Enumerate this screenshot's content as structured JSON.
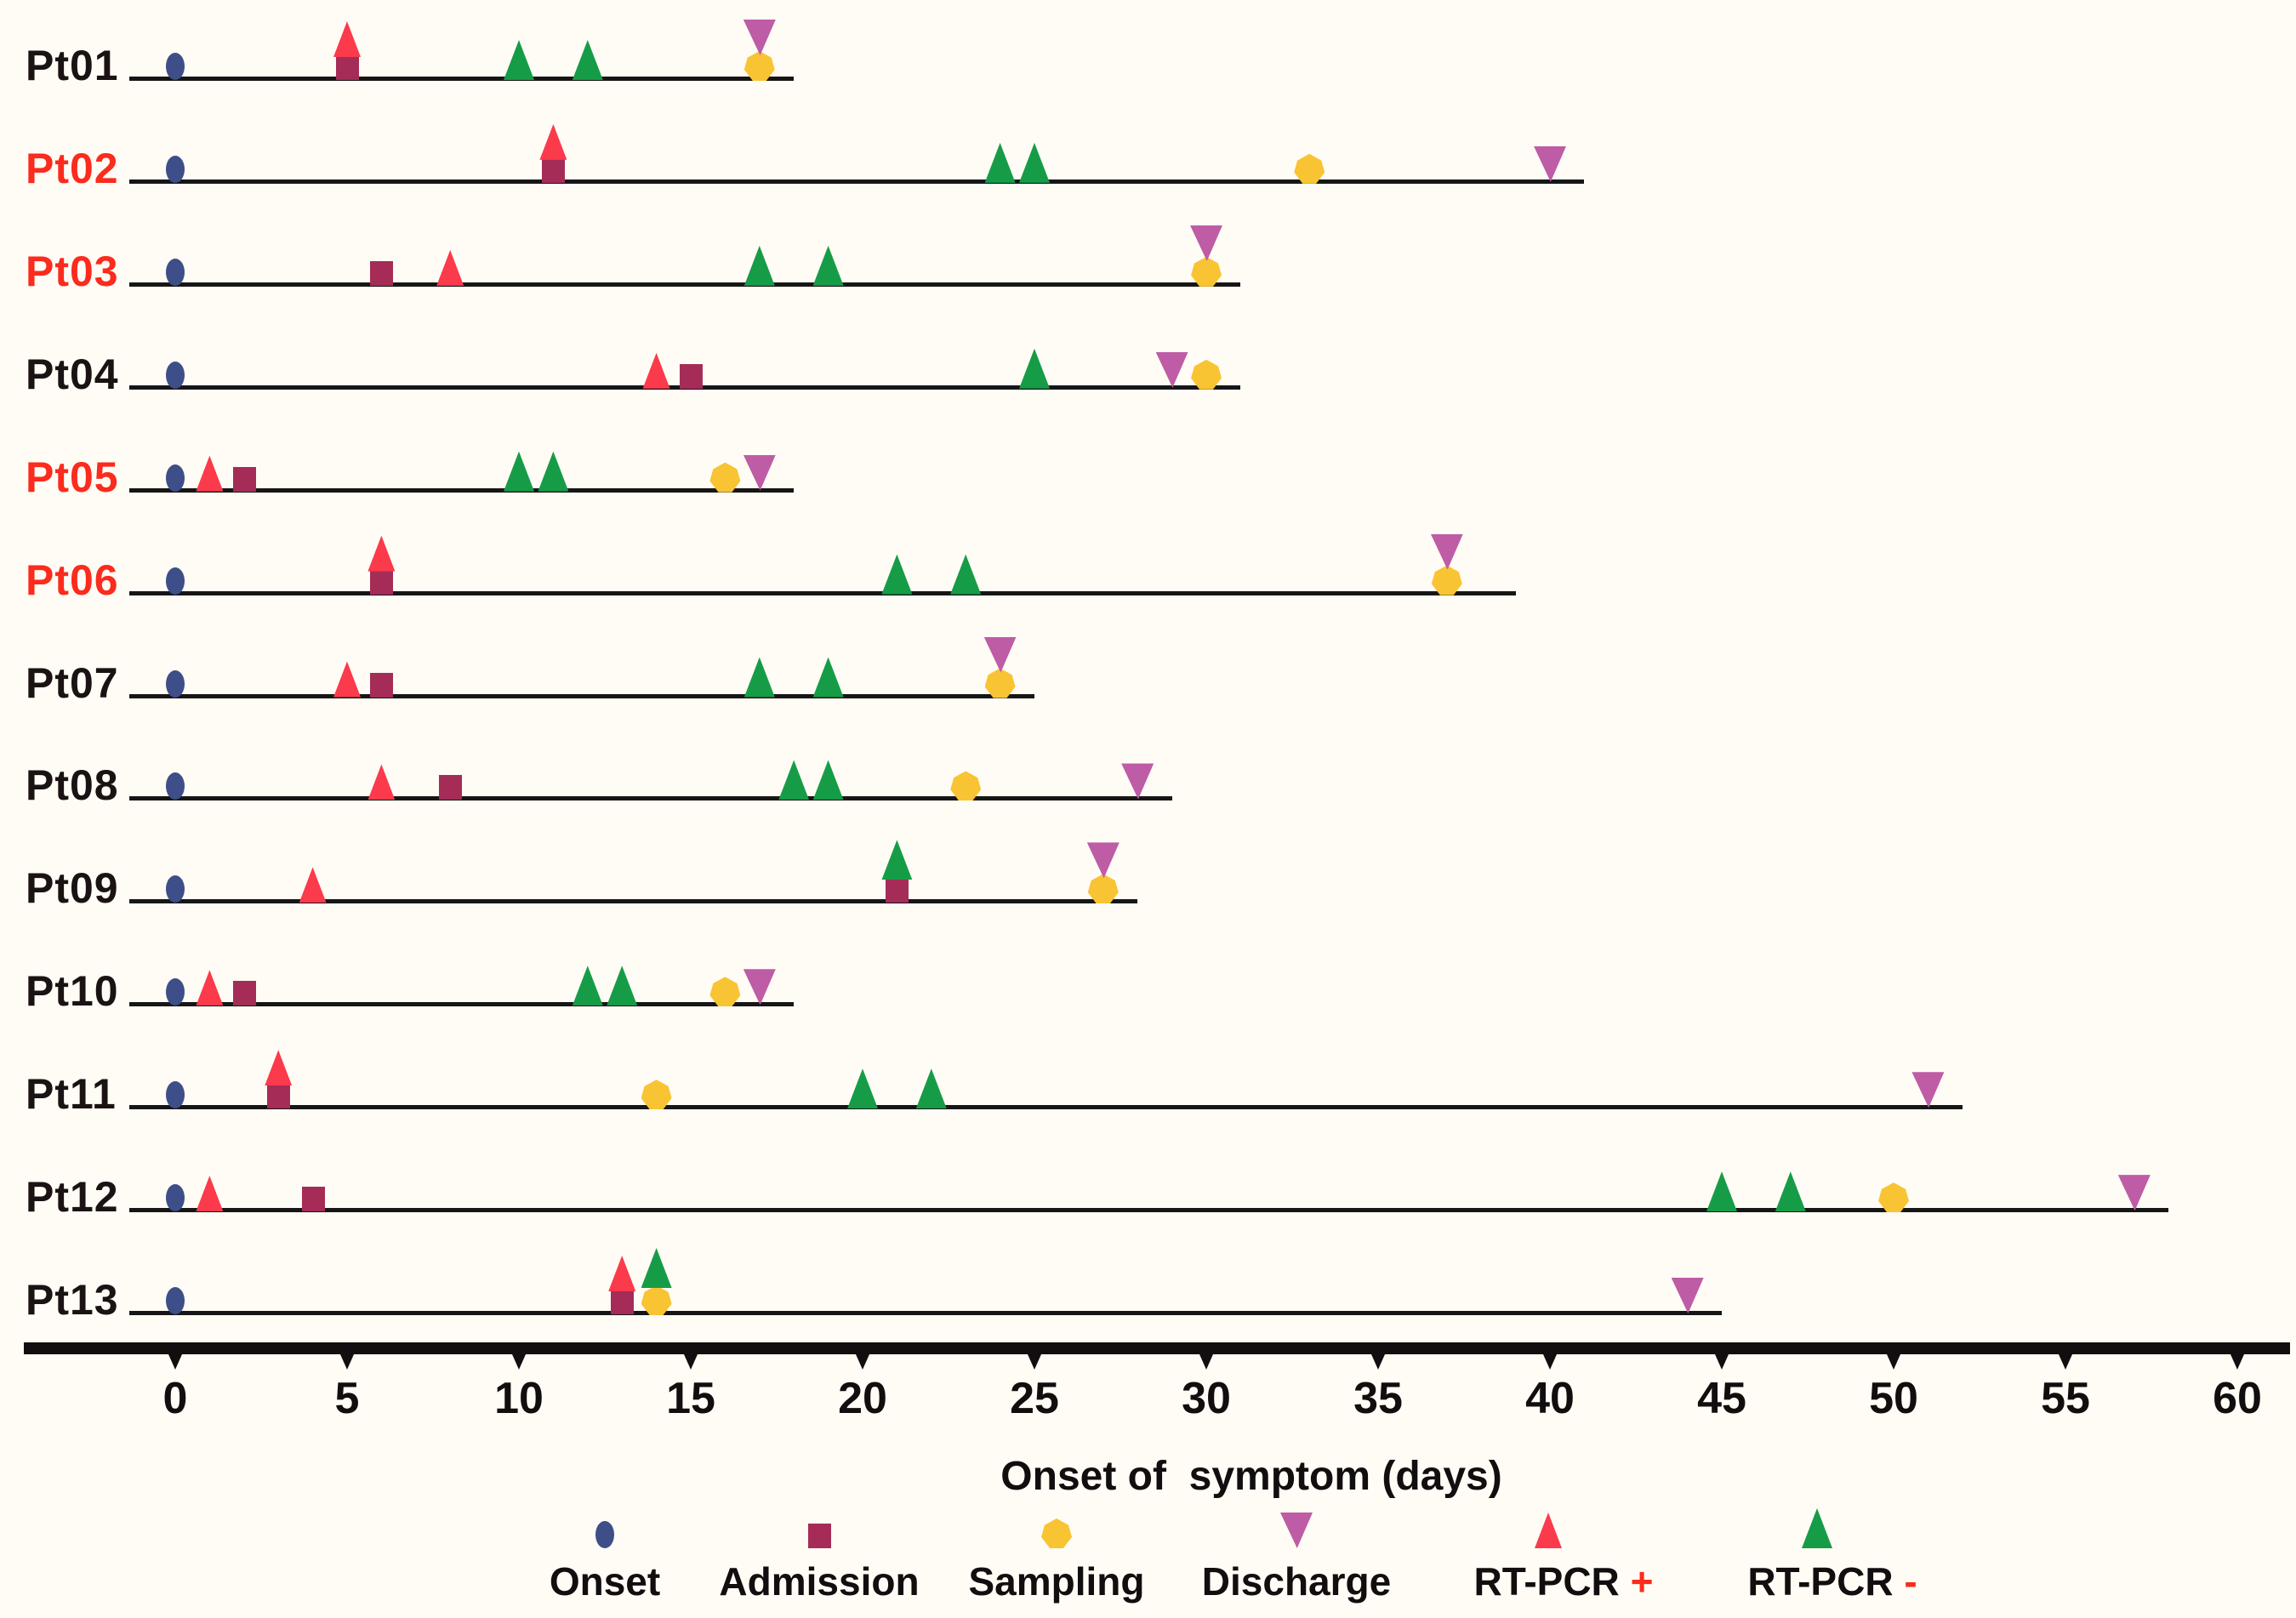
{
  "figure": {
    "background": "#FFFCF5",
    "axis_title": "Onset of  symptom (days)"
  },
  "colors": {
    "onset": "#3E4E88",
    "admission": "#A52C57",
    "sampling": "#F9C433",
    "discharge": "#BE5CA6",
    "rt_pcr_positive": "#FB3A4C",
    "rt_pcr_negative": "#169C47",
    "patient_label_red": "#FB2B1D",
    "text": "#1A1213",
    "line": "#161616"
  },
  "legend": [
    {
      "label": "Onset",
      "marker": "onset",
      "suffix": ""
    },
    {
      "label": "Admission",
      "marker": "admission",
      "suffix": ""
    },
    {
      "label": "Sampling",
      "marker": "sampling",
      "suffix": ""
    },
    {
      "label": "Discharge",
      "marker": "discharge",
      "suffix": ""
    },
    {
      "label": "RT-PCR",
      "marker": "rt_pcr_positive",
      "suffix": "+"
    },
    {
      "label": "RT-PCR",
      "marker": "rt_pcr_negative",
      "suffix": "-"
    }
  ],
  "chart_data": {
    "type": "scatter",
    "title": "",
    "xlabel": "Onset of  symptom (days)",
    "x_ticks": [
      0,
      5,
      10,
      15,
      20,
      25,
      30,
      35,
      40,
      45,
      50,
      55,
      60
    ],
    "xlim": [
      -1.5,
      61
    ],
    "grid": false,
    "legend_position": "bottom",
    "marker_types": [
      "Onset",
      "Admission",
      "Sampling",
      "Discharge",
      "RT-PCR +",
      "RT-PCR -"
    ],
    "patients": [
      {
        "id": "Pt01",
        "label_color": "black",
        "onset": 0,
        "admission": 5,
        "rt_pcr_positive": [
          5
        ],
        "rt_pcr_negative": [
          10,
          12
        ],
        "sampling": [
          17
        ],
        "discharge": 17,
        "line_end": 18
      },
      {
        "id": "Pt02",
        "label_color": "red",
        "onset": 0,
        "admission": 11,
        "rt_pcr_positive": [
          11
        ],
        "rt_pcr_negative": [
          24,
          25
        ],
        "sampling": [
          33
        ],
        "discharge": 40,
        "line_end": 41
      },
      {
        "id": "Pt03",
        "label_color": "red",
        "onset": 0,
        "admission": 6,
        "rt_pcr_positive": [
          8
        ],
        "rt_pcr_negative": [
          17,
          19
        ],
        "sampling": [
          30
        ],
        "discharge": 30,
        "line_end": 31
      },
      {
        "id": "Pt04",
        "label_color": "black",
        "onset": 0,
        "admission": 15,
        "rt_pcr_positive": [
          14
        ],
        "rt_pcr_negative": [
          25
        ],
        "sampling": [
          30
        ],
        "discharge": 29,
        "line_end": 31
      },
      {
        "id": "Pt05",
        "label_color": "red",
        "onset": 0,
        "admission": 2,
        "rt_pcr_positive": [
          1
        ],
        "rt_pcr_negative": [
          10,
          11
        ],
        "sampling": [
          16
        ],
        "discharge": 17,
        "line_end": 18
      },
      {
        "id": "Pt06",
        "label_color": "red",
        "onset": 0,
        "admission": 6,
        "rt_pcr_positive": [
          6
        ],
        "rt_pcr_negative": [
          21,
          23
        ],
        "sampling": [
          37
        ],
        "discharge": 37,
        "line_end": 39
      },
      {
        "id": "Pt07",
        "label_color": "black",
        "onset": 0,
        "admission": 6,
        "rt_pcr_positive": [
          5
        ],
        "rt_pcr_negative": [
          17,
          19
        ],
        "sampling": [
          24
        ],
        "discharge": 24,
        "line_end": 25
      },
      {
        "id": "Pt08",
        "label_color": "black",
        "onset": 0,
        "admission": 8,
        "rt_pcr_positive": [
          6
        ],
        "rt_pcr_negative": [
          18,
          19
        ],
        "sampling": [
          23
        ],
        "discharge": 28,
        "line_end": 29
      },
      {
        "id": "Pt09",
        "label_color": "black",
        "onset": 0,
        "admission": 21,
        "rt_pcr_positive": [
          4
        ],
        "rt_pcr_negative": [
          21
        ],
        "sampling": [
          27
        ],
        "discharge": 27,
        "line_end": 28
      },
      {
        "id": "Pt10",
        "label_color": "black",
        "onset": 0,
        "admission": 2,
        "rt_pcr_positive": [
          1
        ],
        "rt_pcr_negative": [
          12,
          13
        ],
        "sampling": [
          16
        ],
        "discharge": 17,
        "line_end": 18
      },
      {
        "id": "Pt11",
        "label_color": "black",
        "onset": 0,
        "admission": 3,
        "rt_pcr_positive": [
          3
        ],
        "rt_pcr_negative": [
          20,
          22
        ],
        "sampling": [
          14
        ],
        "discharge": 51,
        "line_end": 52
      },
      {
        "id": "Pt12",
        "label_color": "black",
        "onset": 0,
        "admission": 4,
        "rt_pcr_positive": [
          1
        ],
        "rt_pcr_negative": [
          45,
          47
        ],
        "sampling": [
          50
        ],
        "discharge": 57,
        "line_end": 58
      },
      {
        "id": "Pt13",
        "label_color": "black",
        "onset": 0,
        "admission": 13,
        "rt_pcr_positive": [
          13
        ],
        "rt_pcr_negative": [
          14
        ],
        "sampling": [
          14
        ],
        "discharge": 44,
        "line_end": 45
      }
    ]
  }
}
